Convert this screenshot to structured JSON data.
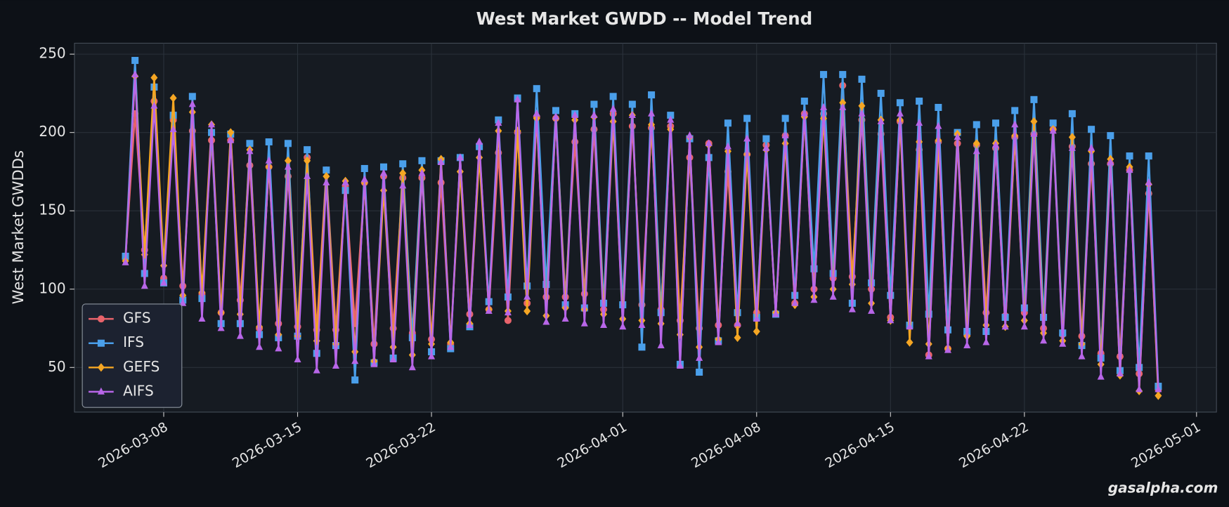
{
  "chart_data": {
    "type": "line",
    "title": "West Market GWDD -- Model Trend",
    "y_label": "West Market GWDDs",
    "watermark": "gasalpha.com",
    "legend": "lower left",
    "grid": true,
    "xlim": [
      "2026-03-03T08:00",
      "2026-05-02T01:00"
    ],
    "xticks": [
      "2026-03-08",
      "2026-03-15",
      "2026-03-22",
      "2026-04-01",
      "2026-04-08",
      "2026-04-15",
      "2026-04-22",
      "2026-05-01"
    ],
    "ylim": [
      21.5,
      257
    ],
    "yticks": [
      50,
      100,
      150,
      200,
      250
    ],
    "x": [
      "2026-03-06T00:00",
      "2026-03-06T12:00",
      "2026-03-07T00:00",
      "2026-03-07T12:00",
      "2026-03-08T00:00",
      "2026-03-08T12:00",
      "2026-03-09T00:00",
      "2026-03-09T12:00",
      "2026-03-10T00:00",
      "2026-03-10T12:00",
      "2026-03-11T00:00",
      "2026-03-11T12:00",
      "2026-03-12T00:00",
      "2026-03-12T12:00",
      "2026-03-13T00:00",
      "2026-03-13T12:00",
      "2026-03-14T00:00",
      "2026-03-14T12:00",
      "2026-03-15T00:00",
      "2026-03-15T12:00",
      "2026-03-16T00:00",
      "2026-03-16T12:00",
      "2026-03-17T00:00",
      "2026-03-17T12:00",
      "2026-03-18T00:00",
      "2026-03-18T12:00",
      "2026-03-19T00:00",
      "2026-03-19T12:00",
      "2026-03-20T00:00",
      "2026-03-20T12:00",
      "2026-03-21T00:00",
      "2026-03-21T12:00",
      "2026-03-22T00:00",
      "2026-03-22T12:00",
      "2026-03-23T00:00",
      "2026-03-23T12:00",
      "2026-03-24T00:00",
      "2026-03-24T12:00",
      "2026-03-25T00:00",
      "2026-03-25T12:00",
      "2026-03-26T00:00",
      "2026-03-26T12:00",
      "2026-03-27T00:00",
      "2026-03-27T12:00",
      "2026-03-28T00:00",
      "2026-03-28T12:00",
      "2026-03-29T00:00",
      "2026-03-29T12:00",
      "2026-03-30T00:00",
      "2026-03-30T12:00",
      "2026-03-31T00:00",
      "2026-03-31T12:00",
      "2026-04-01T00:00",
      "2026-04-01T12:00",
      "2026-04-02T00:00",
      "2026-04-02T12:00",
      "2026-04-03T00:00",
      "2026-04-03T12:00",
      "2026-04-04T00:00",
      "2026-04-04T12:00",
      "2026-04-05T00:00",
      "2026-04-05T12:00",
      "2026-04-06T00:00",
      "2026-04-06T12:00",
      "2026-04-07T00:00",
      "2026-04-07T12:00",
      "2026-04-08T00:00",
      "2026-04-08T12:00",
      "2026-04-09T00:00",
      "2026-04-09T12:00",
      "2026-04-10T00:00",
      "2026-04-10T12:00",
      "2026-04-11T00:00",
      "2026-04-11T12:00",
      "2026-04-12T00:00",
      "2026-04-12T12:00",
      "2026-04-13T00:00",
      "2026-04-13T12:00",
      "2026-04-14T00:00",
      "2026-04-14T12:00",
      "2026-04-15T00:00",
      "2026-04-15T12:00",
      "2026-04-16T00:00",
      "2026-04-16T12:00",
      "2026-04-17T00:00",
      "2026-04-17T12:00",
      "2026-04-18T00:00",
      "2026-04-18T12:00",
      "2026-04-19T00:00",
      "2026-04-19T12:00",
      "2026-04-20T00:00",
      "2026-04-20T12:00",
      "2026-04-21T00:00",
      "2026-04-21T12:00",
      "2026-04-22T00:00",
      "2026-04-22T12:00",
      "2026-04-23T00:00",
      "2026-04-23T12:00",
      "2026-04-24T00:00",
      "2026-04-24T12:00",
      "2026-04-25T00:00",
      "2026-04-25T12:00",
      "2026-04-26T00:00",
      "2026-04-26T12:00",
      "2026-04-27T00:00",
      "2026-04-27T12:00",
      "2026-04-28T00:00",
      "2026-04-28T12:00",
      "2026-04-29T00:00"
    ],
    "series": [
      {
        "name": "GFS",
        "color": "#e8636b",
        "marker": "circle",
        "values": [
          120,
          212,
          125,
          220,
          107,
          208,
          102,
          201,
          97,
          195,
          85,
          195,
          93,
          179,
          75,
          178,
          78,
          172,
          76,
          184,
          74,
          176,
          74,
          166,
          78,
          168,
          65,
          172,
          75,
          171,
          72,
          171,
          68,
          168,
          65,
          184,
          84,
          191,
          87,
          187,
          80,
          200,
          91,
          210,
          95,
          209,
          95,
          194,
          97,
          202,
          87,
          212,
          90,
          204,
          90,
          203,
          87,
          204,
          80,
          184,
          75,
          193,
          77,
          175,
          77,
          186,
          85,
          192,
          84,
          198,
          91,
          212,
          100,
          212,
          107,
          230,
          108,
          208,
          100,
          199,
          82,
          207,
          77,
          189,
          58,
          194,
          62,
          193,
          71,
          192,
          85,
          190,
          83,
          197,
          85,
          199,
          75,
          202,
          71,
          191,
          70,
          180,
          59,
          180,
          57,
          176,
          46,
          161,
          36
        ]
      },
      {
        "name": "IFS",
        "color": "#4a9fea",
        "marker": "square",
        "values": [
          121,
          246,
          110,
          229,
          104,
          211,
          93,
          223,
          94,
          200,
          78,
          199,
          78,
          193,
          71,
          194,
          69,
          193,
          70,
          189,
          59,
          176,
          64,
          163,
          42,
          177,
          53,
          178,
          56,
          180,
          69,
          182,
          60,
          182,
          62,
          184,
          76,
          191,
          92,
          208,
          95,
          222,
          102,
          228,
          103,
          214,
          90,
          212,
          88,
          218,
          91,
          223,
          90,
          218,
          63,
          224,
          85,
          211,
          52,
          196,
          47,
          184,
          67,
          206,
          85,
          209,
          82,
          196,
          84,
          209,
          96,
          220,
          113,
          237,
          110,
          237,
          91,
          234,
          104,
          225,
          96,
          219,
          77,
          220,
          84,
          216,
          74,
          200,
          73,
          205,
          73,
          206,
          82,
          214,
          88,
          221,
          82,
          206,
          72,
          212,
          64,
          202,
          56,
          198,
          48,
          185,
          50,
          185,
          38
        ]
      },
      {
        "name": "GEFS",
        "color": "#f5a623",
        "marker": "diamond",
        "values": [
          118,
          236,
          122,
          235,
          115,
          222,
          96,
          213,
          98,
          205,
          85,
          200,
          84,
          189,
          76,
          178,
          71,
          182,
          70,
          182,
          67,
          172,
          65,
          169,
          60,
          168,
          54,
          163,
          63,
          174,
          58,
          176,
          65,
          183,
          66,
          175,
          78,
          184,
          87,
          201,
          86,
          201,
          86,
          209,
          83,
          209,
          88,
          208,
          87,
          210,
          84,
          207,
          81,
          211,
          80,
          205,
          78,
          202,
          71,
          197,
          63,
          192,
          68,
          188,
          69,
          186,
          73,
          189,
          85,
          193,
          90,
          210,
          95,
          209,
          100,
          219,
          103,
          217,
          91,
          208,
          80,
          208,
          66,
          194,
          65,
          195,
          62,
          199,
          70,
          193,
          77,
          193,
          76,
          198,
          80,
          207,
          72,
          202,
          67,
          197,
          65,
          188,
          52,
          183,
          45,
          178,
          35,
          167,
          32
        ]
      },
      {
        "name": "AIFS",
        "color": "#b866e8",
        "marker": "triangle",
        "values": [
          117,
          237,
          102,
          217,
          104,
          202,
          91,
          218,
          81,
          205,
          75,
          195,
          70,
          188,
          63,
          182,
          62,
          178,
          55,
          172,
          48,
          168,
          51,
          168,
          54,
          170,
          52,
          174,
          55,
          166,
          50,
          174,
          57,
          181,
          63,
          184,
          77,
          194,
          86,
          206,
          85,
          221,
          95,
          212,
          79,
          210,
          81,
          211,
          78,
          211,
          77,
          215,
          76,
          211,
          77,
          212,
          64,
          208,
          51,
          198,
          56,
          193,
          66,
          191,
          78,
          196,
          81,
          190,
          84,
          198,
          91,
          212,
          93,
          216,
          95,
          216,
          87,
          212,
          86,
          207,
          80,
          212,
          76,
          206,
          57,
          204,
          61,
          197,
          64,
          188,
          66,
          192,
          76,
          205,
          76,
          199,
          67,
          201,
          65,
          190,
          57,
          190,
          44,
          181,
          46,
          176,
          36,
          168,
          36
        ]
      }
    ]
  }
}
